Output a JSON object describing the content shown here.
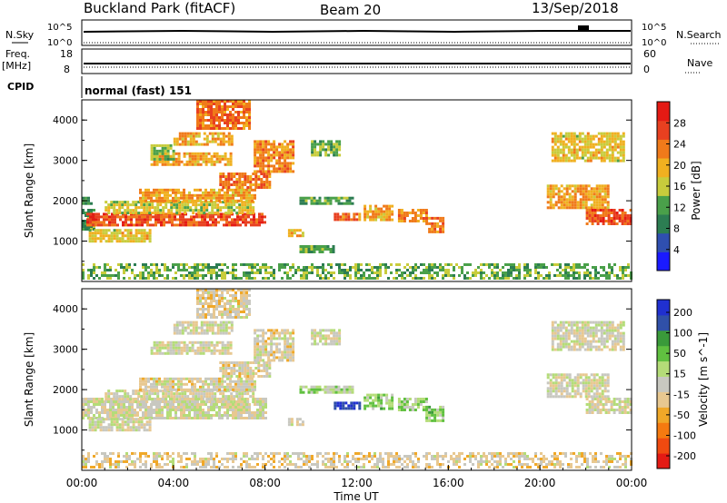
{
  "header": {
    "title_left": "Buckland Park (fitACF)",
    "title_mid": "Beam 20",
    "title_right": "13/Sep/2018"
  },
  "strip_labels": {
    "nsky": "N.Sky",
    "nsky_hi": "10^5",
    "nsky_lo": "10^0",
    "nsearch": "N.Search",
    "nsearch_hi": "10^5",
    "nsearch_lo": "10^0",
    "freq": "Freq.",
    "freq_unit": "[MHz]",
    "freq_hi": "18",
    "freq_lo": "8",
    "nave": "Nave",
    "nave_hi": "60",
    "nave_lo": "0",
    "cpid": "CPID",
    "cpid_value": "normal (fast) 151"
  },
  "colors": {
    "power": [
      "#1a1aff",
      "#2f4fb0",
      "#2c7d52",
      "#4aa04a",
      "#c8cc3c",
      "#f0b020",
      "#f07a1a",
      "#e84020",
      "#e41a14"
    ],
    "velocity": [
      "#e41a14",
      "#f04a10",
      "#f57a10",
      "#f0a828",
      "#e8c890",
      "#c8c8c0",
      "#b4dc78",
      "#60c040",
      "#3a9a3a",
      "#3050a8",
      "#2030d0"
    ]
  },
  "chart_data": [
    {
      "type": "heatmap",
      "title": "Power",
      "ylabel": "Slant Range [km]",
      "xlabel": "Time UT",
      "yticks": [
        "1000",
        "2000",
        "3000",
        "4000"
      ],
      "ylim": [
        0,
        4500
      ],
      "xlim": [
        0,
        24
      ],
      "colorbar_label": "Power [dB]",
      "colorbar_ticks": [
        "4",
        "8",
        "12",
        "16",
        "20",
        "24",
        "28"
      ],
      "clim": [
        0,
        32
      ],
      "bands": [
        {
          "t0": 0.0,
          "t1": 0.4,
          "r0": 1900,
          "r1": 2100,
          "v": 10
        },
        {
          "t0": 0.0,
          "t1": 0.5,
          "r0": 1300,
          "r1": 1800,
          "v": 11
        },
        {
          "t0": 0.2,
          "t1": 8.0,
          "r0": 1400,
          "r1": 1700,
          "v": 26
        },
        {
          "t0": 0.3,
          "t1": 3.0,
          "r0": 1000,
          "r1": 1300,
          "v": 18
        },
        {
          "t0": 1.0,
          "t1": 7.5,
          "r0": 1700,
          "r1": 2000,
          "v": 17
        },
        {
          "t0": 2.5,
          "t1": 7.5,
          "r0": 2000,
          "r1": 2300,
          "v": 21
        },
        {
          "t0": 6.0,
          "t1": 8.2,
          "r0": 2300,
          "r1": 2700,
          "v": 24
        },
        {
          "t0": 7.5,
          "t1": 9.2,
          "r0": 2700,
          "r1": 3500,
          "v": 22
        },
        {
          "t0": 3.0,
          "t1": 6.5,
          "r0": 2900,
          "r1": 3200,
          "v": 20
        },
        {
          "t0": 4.0,
          "t1": 6.5,
          "r0": 3400,
          "r1": 3700,
          "v": 20
        },
        {
          "t0": 5.0,
          "t1": 7.3,
          "r0": 3800,
          "r1": 4500,
          "v": 24
        },
        {
          "t0": 3.0,
          "t1": 4.0,
          "r0": 3000,
          "r1": 3400,
          "v": 14
        },
        {
          "t0": 9.0,
          "t1": 9.6,
          "r0": 1100,
          "r1": 1300,
          "v": 19
        },
        {
          "t0": 9.5,
          "t1": 11.8,
          "r0": 1900,
          "r1": 2100,
          "v": 12
        },
        {
          "t0": 11.0,
          "t1": 12.1,
          "r0": 1500,
          "r1": 1700,
          "v": 24
        },
        {
          "t0": 12.3,
          "t1": 13.6,
          "r0": 1500,
          "r1": 1900,
          "v": 20
        },
        {
          "t0": 13.8,
          "t1": 15.0,
          "r0": 1500,
          "r1": 1800,
          "v": 22
        },
        {
          "t0": 15.0,
          "t1": 15.8,
          "r0": 1200,
          "r1": 1600,
          "v": 24
        },
        {
          "t0": 9.5,
          "t1": 11.0,
          "r0": 700,
          "r1": 900,
          "v": 12
        },
        {
          "t0": 10.0,
          "t1": 11.3,
          "r0": 3100,
          "r1": 3500,
          "v": 13
        },
        {
          "t0": 20.3,
          "t1": 23.0,
          "r0": 1800,
          "r1": 2400,
          "v": 21
        },
        {
          "t0": 22.0,
          "t1": 24.0,
          "r0": 1400,
          "r1": 1800,
          "v": 26
        },
        {
          "t0": 20.5,
          "t1": 23.7,
          "r0": 3000,
          "r1": 3700,
          "v": 18
        },
        {
          "t0": 0.0,
          "t1": 24.0,
          "r0": 100,
          "r1": 450,
          "v": 13
        }
      ]
    },
    {
      "type": "heatmap",
      "title": "Velocity",
      "ylabel": "Slant Range [km]",
      "xlabel": "Time UT",
      "yticks": [
        "1000",
        "2000",
        "3000",
        "4000"
      ],
      "xticks": [
        "00:00",
        "04:00",
        "08:00",
        "12:00",
        "16:00",
        "20:00",
        "00:00"
      ],
      "ylim": [
        0,
        4500
      ],
      "xlim": [
        0,
        24
      ],
      "colorbar_label": "Velocity [m s^-1]",
      "colorbar_ticks": [
        "200",
        "100",
        "50",
        "15",
        "-15",
        "-50",
        "-100",
        "-200"
      ],
      "clim": [
        -250,
        250
      ],
      "bands": [
        {
          "t0": 0.0,
          "t1": 8.0,
          "r0": 1300,
          "r1": 1800,
          "v": 0
        },
        {
          "t0": 0.3,
          "t1": 3.0,
          "r0": 1000,
          "r1": 1300,
          "v": -5
        },
        {
          "t0": 1.0,
          "t1": 7.5,
          "r0": 1700,
          "r1": 2000,
          "v": -5
        },
        {
          "t0": 2.5,
          "t1": 7.5,
          "r0": 2000,
          "r1": 2300,
          "v": -20
        },
        {
          "t0": 6.0,
          "t1": 8.2,
          "r0": 2300,
          "r1": 2700,
          "v": -20
        },
        {
          "t0": 7.5,
          "t1": 9.2,
          "r0": 2700,
          "r1": 3500,
          "v": -20
        },
        {
          "t0": 3.0,
          "t1": 6.5,
          "r0": 2900,
          "r1": 3200,
          "v": -5
        },
        {
          "t0": 4.0,
          "t1": 6.5,
          "r0": 3400,
          "r1": 3700,
          "v": 0
        },
        {
          "t0": 5.0,
          "t1": 7.3,
          "r0": 3800,
          "r1": 4500,
          "v": -30
        },
        {
          "t0": 9.0,
          "t1": 9.6,
          "r0": 1100,
          "r1": 1300,
          "v": 0
        },
        {
          "t0": 9.5,
          "t1": 11.8,
          "r0": 1900,
          "r1": 2100,
          "v": 40
        },
        {
          "t0": 11.0,
          "t1": 12.1,
          "r0": 1500,
          "r1": 1700,
          "v": 220
        },
        {
          "t0": 12.3,
          "t1": 13.6,
          "r0": 1500,
          "r1": 1900,
          "v": 60
        },
        {
          "t0": 13.8,
          "t1": 15.0,
          "r0": 1500,
          "r1": 1800,
          "v": 40
        },
        {
          "t0": 15.0,
          "t1": 15.8,
          "r0": 1200,
          "r1": 1600,
          "v": 60
        },
        {
          "t0": 10.0,
          "t1": 11.3,
          "r0": 3100,
          "r1": 3500,
          "v": 0
        },
        {
          "t0": 20.3,
          "t1": 23.0,
          "r0": 1800,
          "r1": 2400,
          "v": 0
        },
        {
          "t0": 22.0,
          "t1": 24.0,
          "r0": 1400,
          "r1": 1800,
          "v": 0
        },
        {
          "t0": 20.5,
          "t1": 23.7,
          "r0": 3000,
          "r1": 3700,
          "v": 0
        },
        {
          "t0": 0.0,
          "t1": 24.0,
          "r0": 100,
          "r1": 450,
          "v": -30
        }
      ]
    }
  ]
}
